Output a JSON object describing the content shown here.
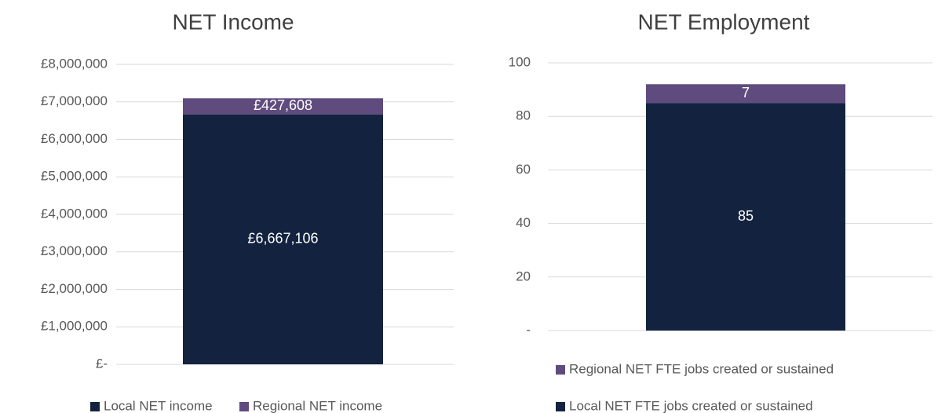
{
  "chart_data": [
    {
      "type": "stacked_bar",
      "title": "NET Income",
      "ylim": [
        0,
        8000000
      ],
      "yticks": [
        {
          "value": 0,
          "label": "£-"
        },
        {
          "value": 1000000,
          "label": "£1,000,000"
        },
        {
          "value": 2000000,
          "label": "£2,000,000"
        },
        {
          "value": 3000000,
          "label": "£3,000,000"
        },
        {
          "value": 4000000,
          "label": "£4,000,000"
        },
        {
          "value": 5000000,
          "label": "£5,000,000"
        },
        {
          "value": 6000000,
          "label": "£6,000,000"
        },
        {
          "value": 7000000,
          "label": "£7,000,000"
        },
        {
          "value": 8000000,
          "label": "£8,000,000"
        }
      ],
      "grid": true,
      "legend": "bottom",
      "series": [
        {
          "name": "Local NET income",
          "color": "#13233f",
          "values": [
            6667106
          ],
          "value_labels": [
            "£6,667,106"
          ]
        },
        {
          "name": "Regional NET income",
          "color": "#5f4b7e",
          "values": [
            427608
          ],
          "value_labels": [
            "£427,608"
          ]
        }
      ]
    },
    {
      "type": "stacked_bar",
      "title": "NET Employment",
      "ylim": [
        0,
        100
      ],
      "yticks": [
        {
          "value": 0,
          "label": "-"
        },
        20,
        40,
        60,
        80,
        100
      ],
      "grid": true,
      "legend": "bottom",
      "series": [
        {
          "name": "Local NET FTE jobs created or sustained",
          "color": "#13233f",
          "values": [
            85
          ]
        },
        {
          "name": "Regional NET FTE jobs created or sustained",
          "color": "#5f4b7e",
          "values": [
            7
          ]
        }
      ]
    }
  ]
}
